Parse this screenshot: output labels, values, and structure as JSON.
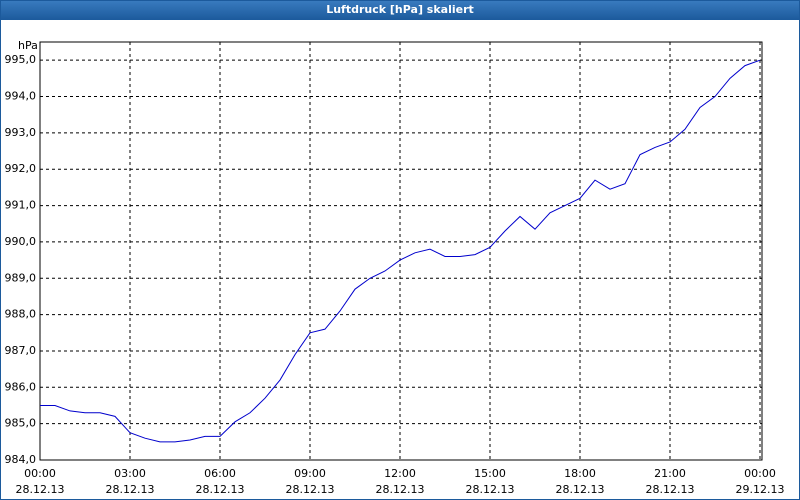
{
  "chart_data": {
    "type": "line",
    "title": "Luftdruck [hPa] skaliert",
    "ylabel": "hPa",
    "x": [
      0,
      0.5,
      1,
      1.5,
      2,
      2.5,
      3,
      3.5,
      4,
      4.5,
      5,
      5.5,
      6,
      6.5,
      7,
      7.5,
      8,
      8.5,
      9,
      9.5,
      10,
      10.5,
      11,
      11.5,
      12,
      12.5,
      13,
      13.5,
      14,
      14.5,
      15,
      15.5,
      16,
      16.5,
      17,
      17.5,
      18,
      18.5,
      19,
      19.5,
      20,
      20.5,
      21,
      21.5,
      22,
      22.5,
      23,
      23.5,
      24
    ],
    "series": [
      {
        "name": "Luftdruck",
        "color": "#0000cc",
        "values": [
          985.5,
          985.5,
          985.35,
          985.3,
          985.3,
          985.2,
          984.75,
          984.6,
          984.5,
          984.5,
          984.55,
          984.65,
          984.65,
          985.05,
          985.3,
          985.7,
          986.2,
          986.9,
          987.5,
          987.6,
          988.1,
          988.7,
          989.0,
          989.2,
          989.5,
          989.7,
          989.8,
          989.6,
          989.6,
          989.65,
          989.85,
          990.3,
          990.7,
          990.35,
          990.8,
          991.0,
          991.2,
          991.7,
          991.45,
          991.6,
          992.4,
          992.6,
          992.75,
          993.1,
          993.7,
          994.0,
          994.5,
          994.85,
          995.0
        ]
      }
    ],
    "xlim": [
      0,
      24
    ],
    "xticks": [
      {
        "value": 0,
        "label": "00:00",
        "date": "28.12.13"
      },
      {
        "value": 3,
        "label": "03:00",
        "date": "28.12.13"
      },
      {
        "value": 6,
        "label": "06:00",
        "date": "28.12.13"
      },
      {
        "value": 9,
        "label": "09:00",
        "date": "28.12.13"
      },
      {
        "value": 12,
        "label": "12:00",
        "date": "28.12.13"
      },
      {
        "value": 15,
        "label": "15:00",
        "date": "28.12.13"
      },
      {
        "value": 18,
        "label": "18:00",
        "date": "28.12.13"
      },
      {
        "value": 21,
        "label": "21:00",
        "date": "28.12.13"
      },
      {
        "value": 24,
        "label": "00:00",
        "date": "29.12.13"
      }
    ],
    "ylim": [
      984,
      995.5
    ],
    "yticks": [
      {
        "value": 984,
        "label": "984,0"
      },
      {
        "value": 985,
        "label": "985,0"
      },
      {
        "value": 986,
        "label": "986,0"
      },
      {
        "value": 987,
        "label": "987,0"
      },
      {
        "value": 988,
        "label": "988,0"
      },
      {
        "value": 989,
        "label": "989,0"
      },
      {
        "value": 990,
        "label": "990,0"
      },
      {
        "value": 991,
        "label": "991,0"
      },
      {
        "value": 992,
        "label": "992,0"
      },
      {
        "value": 993,
        "label": "993,0"
      },
      {
        "value": 994,
        "label": "994,0"
      },
      {
        "value": 995,
        "label": "995,0"
      }
    ],
    "grid": true
  }
}
